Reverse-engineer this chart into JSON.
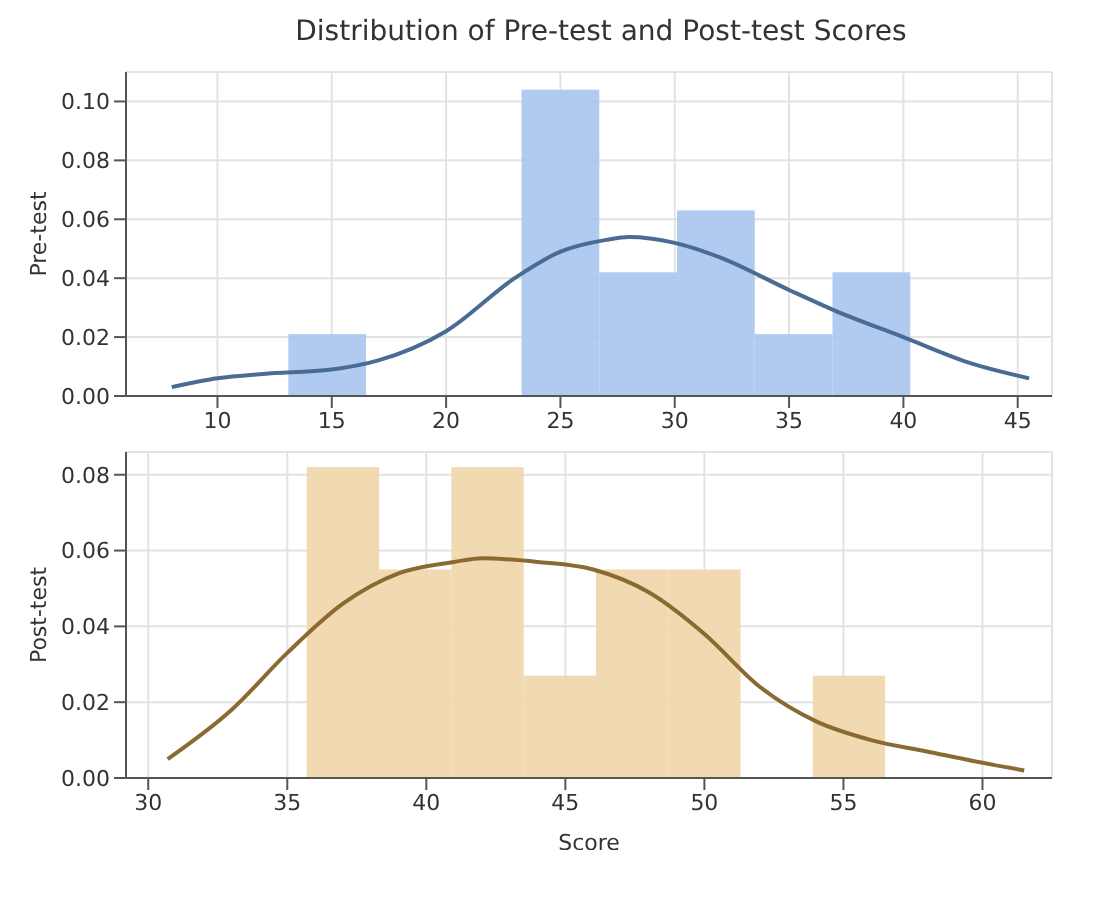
{
  "chart_data": [
    {
      "type": "histogram",
      "title": "Distribution of Pre-test and Post-test Scores",
      "ylabel": "Pre-test",
      "bins": [
        13.1,
        16.5,
        19.9,
        23.3,
        26.7,
        30.1,
        33.5,
        36.9,
        40.3
      ],
      "values": [
        0.021,
        0,
        0,
        0.104,
        0.042,
        0.063,
        0.021,
        0.042
      ],
      "color": "#a9c4ee",
      "series": [
        {
          "type": "line",
          "color": "#4a6c94",
          "x": [
            8,
            10,
            12,
            15,
            17,
            20,
            23,
            25,
            27,
            28,
            30,
            32,
            35,
            37,
            40,
            43,
            45.5
          ],
          "values": [
            0.003,
            0.006,
            0.0075,
            0.009,
            0.012,
            0.022,
            0.04,
            0.049,
            0.053,
            0.054,
            0.052,
            0.047,
            0.036,
            0.029,
            0.02,
            0.011,
            0.006
          ]
        }
      ],
      "xlim": [
        6,
        46.5
      ],
      "xticks": [
        10,
        15,
        20,
        25,
        30,
        35,
        40,
        45
      ],
      "ylim": [
        0,
        0.11
      ],
      "yticks": [
        {
          "value": 0,
          "label": "0.00"
        },
        {
          "value": 0.02,
          "label": "0.02"
        },
        {
          "value": 0.04,
          "label": "0.04"
        },
        {
          "value": 0.06,
          "label": "0.06"
        },
        {
          "value": 0.08,
          "label": "0.08"
        },
        {
          "value": 0.1,
          "label": "0.10"
        }
      ],
      "grid": true
    },
    {
      "type": "histogram",
      "xlabel": "Score",
      "ylabel": "Post-test",
      "bins": [
        35.7,
        38.3,
        40.9,
        43.5,
        46.1,
        48.7,
        51.3,
        53.9,
        56.5
      ],
      "values": [
        0.082,
        0.055,
        0.082,
        0.027,
        0.055,
        0.055,
        0,
        0.027
      ],
      "color": "#f0d6a8",
      "series": [
        {
          "type": "line",
          "color": "#8a6a30",
          "x": [
            30.7,
            33,
            35,
            37,
            39,
            41,
            42,
            44,
            46,
            48,
            50,
            52,
            54,
            56,
            58,
            60,
            61.5
          ],
          "values": [
            0.005,
            0.018,
            0.033,
            0.046,
            0.054,
            0.057,
            0.058,
            0.057,
            0.055,
            0.049,
            0.038,
            0.024,
            0.015,
            0.01,
            0.007,
            0.004,
            0.002
          ]
        }
      ],
      "xlim": [
        29.2,
        62.5
      ],
      "xticks": [
        30,
        35,
        40,
        45,
        50,
        55,
        60
      ],
      "ylim": [
        0,
        0.086
      ],
      "yticks": [
        {
          "value": 0,
          "label": "0.00"
        },
        {
          "value": 0.02,
          "label": "0.02"
        },
        {
          "value": 0.04,
          "label": "0.04"
        },
        {
          "value": 0.06,
          "label": "0.06"
        },
        {
          "value": 0.08,
          "label": "0.08"
        }
      ],
      "grid": true
    }
  ]
}
